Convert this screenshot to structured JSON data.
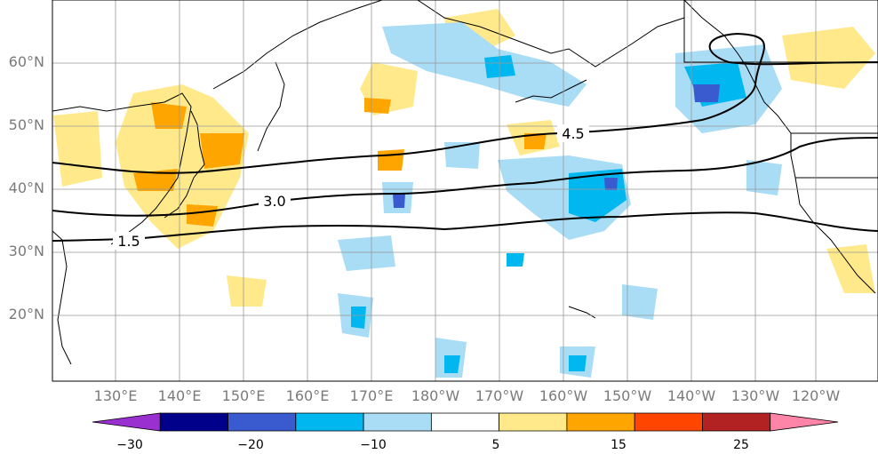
{
  "map": {
    "lat_labels": [
      "60°N",
      "50°N",
      "40°N",
      "30°N",
      "20°N"
    ],
    "lon_labels": [
      "130°E",
      "140°E",
      "150°E",
      "160°E",
      "170°E",
      "180°W",
      "170°W",
      "160°W",
      "150°W",
      "140°W",
      "130°W",
      "120°W"
    ],
    "contour_labels": [
      "4.5",
      "3.0",
      "1.5"
    ]
  },
  "colorbar": {
    "colors": [
      "#9b30d0",
      "#00008b",
      "#3a5bd0",
      "#00b7f0",
      "#a9dcf5",
      "#ffffff",
      "#ffe98a",
      "#ffa500",
      "#ff4500",
      "#b22222",
      "#ff85a8"
    ],
    "tick_labels": [
      "−30",
      "−20",
      "−10",
      "5",
      "15",
      "25"
    ]
  }
}
